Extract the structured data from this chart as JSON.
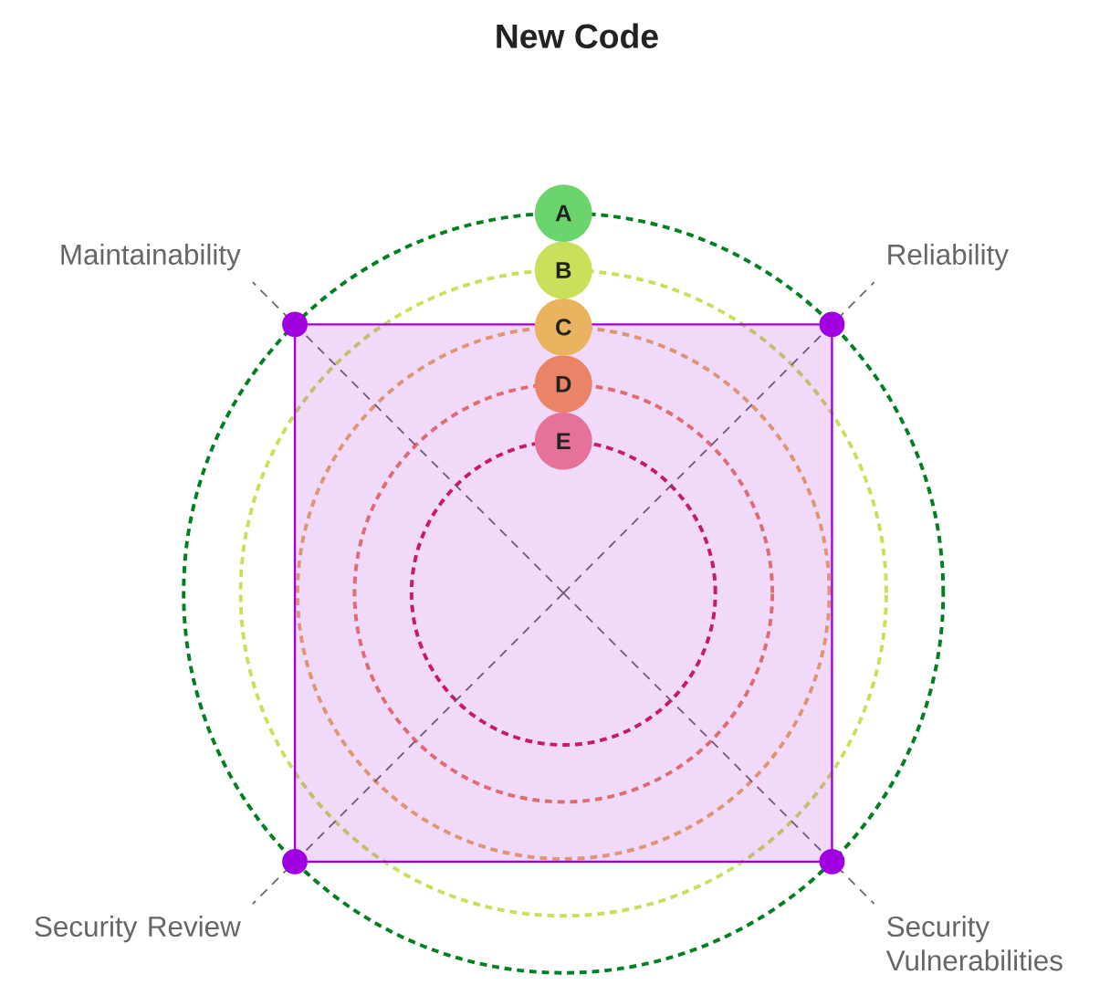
{
  "chart_data": {
    "type": "radar",
    "title": "New Code",
    "categories": [
      "Reliability",
      "Security Vulnerabilities",
      "Security Review",
      "Maintainability"
    ],
    "series": [
      {
        "color": "#a000e0",
        "values": [
          1,
          1,
          1,
          1
        ]
      }
    ],
    "ylim": [
      0,
      1
    ],
    "yticks": [
      {
        "value": 0.4,
        "label": "E"
      },
      {
        "value": 0.55,
        "label": "D"
      },
      {
        "value": 0.7,
        "label": "C"
      },
      {
        "value": 0.85,
        "label": "B"
      },
      {
        "value": 1,
        "label": "A"
      }
    ],
    "grid": true,
    "marker": "circle"
  }
}
